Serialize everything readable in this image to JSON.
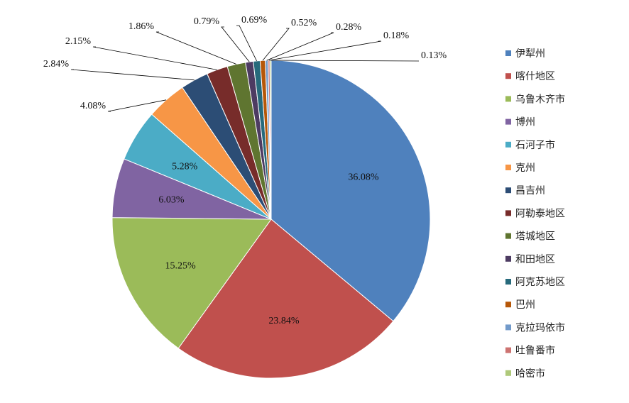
{
  "chart_data": {
    "type": "pie",
    "title": "",
    "legend_position": "right",
    "start_angle": "top, clockwise",
    "slices": [
      {
        "name": "伊犁州",
        "value": 36.08,
        "label": "36.08%",
        "color": "#4F81BD"
      },
      {
        "name": "喀什地区",
        "value": 23.84,
        "label": "23.84%",
        "color": "#C0504D"
      },
      {
        "name": "乌鲁木齐市",
        "value": 15.25,
        "label": "15.25%",
        "color": "#9BBB59"
      },
      {
        "name": "博州",
        "value": 6.03,
        "label": "6.03%",
        "color": "#8064A2"
      },
      {
        "name": "石河子市",
        "value": 5.28,
        "label": "5.28%",
        "color": "#4BACC6"
      },
      {
        "name": "克州",
        "value": 4.08,
        "label": "4.08%",
        "color": "#F79646"
      },
      {
        "name": "昌吉州",
        "value": 2.84,
        "label": "2.84%",
        "color": "#2C4D75"
      },
      {
        "name": "阿勒泰地区",
        "value": 2.15,
        "label": "2.15%",
        "color": "#772C2A"
      },
      {
        "name": "塔城地区",
        "value": 1.86,
        "label": "1.86%",
        "color": "#5F7530"
      },
      {
        "name": "和田地区",
        "value": 0.79,
        "label": "0.79%",
        "color": "#4D3B62"
      },
      {
        "name": "阿克苏地区",
        "value": 0.69,
        "label": "0.69%",
        "color": "#276A7C"
      },
      {
        "name": "巴州",
        "value": 0.52,
        "label": "0.52%",
        "color": "#B65708"
      },
      {
        "name": "克拉玛依市",
        "value": 0.28,
        "label": "0.28%",
        "color": "#729ACA"
      },
      {
        "name": "吐鲁番市",
        "value": 0.18,
        "label": "0.18%",
        "color": "#CD7371"
      },
      {
        "name": "哈密市",
        "value": 0.13,
        "label": "0.13%",
        "color": "#AFC97A"
      }
    ]
  }
}
